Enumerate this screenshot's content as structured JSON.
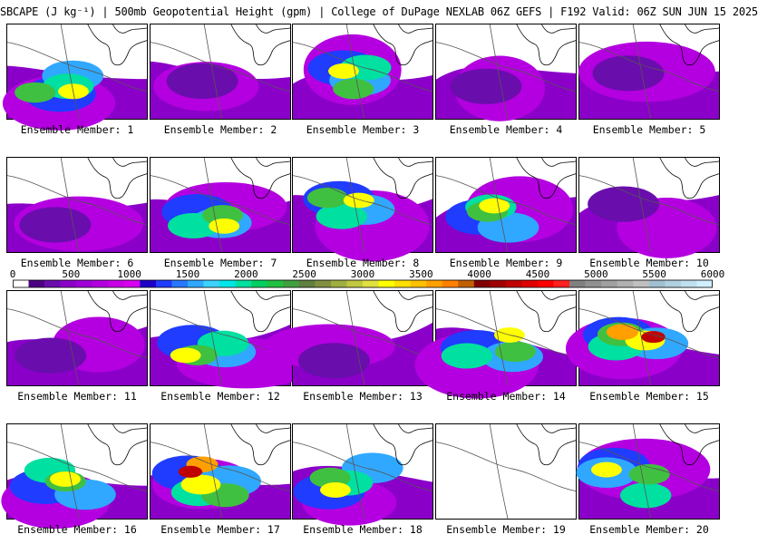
{
  "title": "SBCAPE (J kg⁻¹) | 500mb Geopotential Height (gpm) | College of DuPage NEXLAB 06Z GEFS | F192 Valid: 06Z SUN JUN 15 2025",
  "panels": [
    {
      "label": "Ensemble Member: 1",
      "cape": "moderate"
    },
    {
      "label": "Ensemble Member: 2",
      "cape": "weak"
    },
    {
      "label": "Ensemble Member: 3",
      "cape": "moderate"
    },
    {
      "label": "Ensemble Member: 4",
      "cape": "weak"
    },
    {
      "label": "Ensemble Member: 5",
      "cape": "weak"
    },
    {
      "label": "Ensemble Member: 6",
      "cape": "weak"
    },
    {
      "label": "Ensemble Member: 7",
      "cape": "moderate"
    },
    {
      "label": "Ensemble Member: 8",
      "cape": "moderate"
    },
    {
      "label": "Ensemble Member: 9",
      "cape": "moderate"
    },
    {
      "label": "Ensemble Member: 10",
      "cape": "weak"
    },
    {
      "label": "Ensemble Member: 11",
      "cape": "weak"
    },
    {
      "label": "Ensemble Member: 12",
      "cape": "moderate"
    },
    {
      "label": "Ensemble Member: 13",
      "cape": "weak"
    },
    {
      "label": "Ensemble Member: 14",
      "cape": "moderate"
    },
    {
      "label": "Ensemble Member: 15",
      "cape": "strong"
    },
    {
      "label": "Ensemble Member: 16",
      "cape": "moderate"
    },
    {
      "label": "Ensemble Member: 17",
      "cape": "strong"
    },
    {
      "label": "Ensemble Member: 18",
      "cape": "moderate"
    },
    {
      "label": "Ensemble Member: 19",
      "cape": "none"
    },
    {
      "label": "Ensemble Member: 20",
      "cape": "moderate"
    }
  ],
  "colorbar": {
    "ticks": [
      "0",
      "500",
      "1000",
      "1500",
      "2000",
      "2500",
      "3000",
      "3500",
      "4000",
      "4500",
      "5000",
      "5500",
      "6000"
    ],
    "colors": [
      "#ffffff",
      "#4b0082",
      "#6a0dad",
      "#8b00c9",
      "#a000d8",
      "#b400e0",
      "#c800e8",
      "#d800f0",
      "#1c00c8",
      "#1f3cff",
      "#2878ff",
      "#30a8ff",
      "#3cd2ff",
      "#00e6e6",
      "#00e0a0",
      "#00d060",
      "#20c040",
      "#40a040",
      "#608040",
      "#809040",
      "#a0b040",
      "#c0c840",
      "#e0e040",
      "#ffff00",
      "#ffe000",
      "#ffc000",
      "#ffa000",
      "#ff8000",
      "#c06000",
      "#800000",
      "#a00000",
      "#c00000",
      "#e00000",
      "#ff0000",
      "#ff2020",
      "#808080",
      "#909090",
      "#a0a0a0",
      "#b0b0b0",
      "#c0c0c0",
      "#a0c0d0",
      "#b0d0e0",
      "#c0e0f0",
      "#d0f0ff"
    ]
  }
}
